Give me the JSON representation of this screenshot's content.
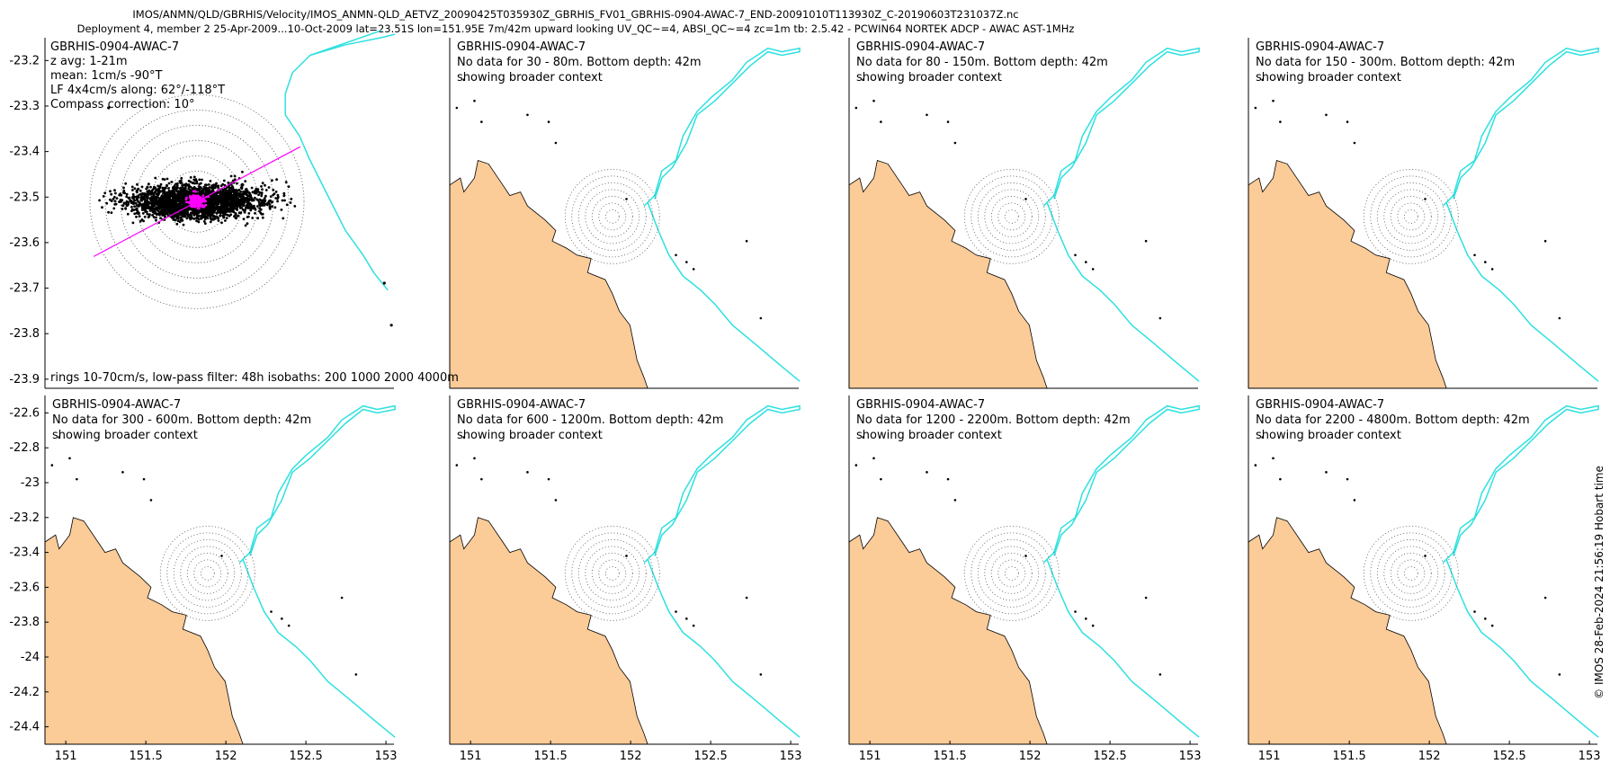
{
  "header": {
    "line1": "IMOS/ANMN/QLD/GBRHIS/Velocity/IMOS_ANMN-QLD_AETVZ_20090425T035930Z_GBRHIS_FV01_GBRHIS-0904-AWAC-7_END-20091010T113930Z_C-20190603T231037Z.nc",
    "line2": "Deployment 4, member 2 25-Apr-2009...10-Oct-2009 lat=23.51S lon=151.95E 7m/42m upward looking UV_QC~=4, ABSI_QC~=4 zc=1m tb: 2.5.42 - PCWIN64 NORTEK ADCP - AWAC AST-1MHz"
  },
  "side_label": "© IMOS 28-Feb-2024 21:56:19 Hobart time",
  "colors": {
    "land": "#fbcb98",
    "isobath": "#2ee0e0",
    "scatter": "#000000",
    "lowpass": "#ff00ff",
    "rings": "#555555"
  },
  "chart_data": {
    "type": "scatter",
    "station": "GBRHIS-0904-AWAC-7",
    "station_lat": -23.51,
    "station_lon": 151.95,
    "top_panel": {
      "info_lines": [
        "GBRHIS-0904-AWAC-7",
        "z avg: 1-21m",
        "mean: 1cm/s -90°T",
        "LF 4x4cm/s along: 62°/-118°T",
        "Compass correction: 10°"
      ],
      "footer": "rings 10-70cm/s, low-pass filter: 48h isobaths: 200 1000 2000 4000m",
      "ylim": [
        -23.92,
        -23.15
      ],
      "y_ticks": [
        -23.2,
        -23.3,
        -23.4,
        -23.5,
        -23.6,
        -23.7,
        -23.8,
        -23.9
      ],
      "y_tick_labels": [
        "-23.2",
        "-23.3",
        "-23.4",
        "-23.5",
        "-23.6",
        "-23.7",
        "-23.8",
        "-23.9"
      ],
      "ring_speeds_cm_s": [
        10,
        20,
        30,
        40,
        50,
        60,
        70
      ],
      "mean_velocity": {
        "speed_cm_s": 1,
        "direction_degT": -90
      },
      "principal_axis_degT": 62
    },
    "no_data_panels": [
      {
        "title": "GBRHIS-0904-AWAC-7",
        "message": "No data for 30 - 80m. Bottom depth: 42m",
        "note": "showing broader context"
      },
      {
        "title": "GBRHIS-0904-AWAC-7",
        "message": "No data for 80 - 150m. Bottom depth: 42m",
        "note": "showing broader context"
      },
      {
        "title": "GBRHIS-0904-AWAC-7",
        "message": "No data for 150 - 300m. Bottom depth: 42m",
        "note": "showing broader context"
      },
      {
        "title": "GBRHIS-0904-AWAC-7",
        "message": "No data for 300 - 600m. Bottom depth: 42m",
        "note": "showing broader context"
      },
      {
        "title": "GBRHIS-0904-AWAC-7",
        "message": "No data for 600 - 1200m. Bottom depth: 42m",
        "note": "showing broader context"
      },
      {
        "title": "GBRHIS-0904-AWAC-7",
        "message": "No data for 1200 - 2200m. Bottom depth: 42m",
        "note": "showing broader context"
      },
      {
        "title": "GBRHIS-0904-AWAC-7",
        "message": "No data for 2200 - 4800m. Bottom depth: 42m",
        "note": "showing broader context"
      }
    ],
    "context_xlim": [
      150.87,
      153.05
    ],
    "context_ylim": [
      -24.5,
      -22.5
    ],
    "bottom_y_ticks": [
      -22.6,
      -22.8,
      -23,
      -23.2,
      -23.4,
      -23.6,
      -23.8,
      -24,
      -24.2,
      -24.4
    ],
    "bottom_y_tick_labels": [
      "-22.6",
      "-22.8",
      "-23",
      "-23.2",
      "-23.4",
      "-23.6",
      "-23.8",
      "-24",
      "-24.2",
      "-24.4"
    ],
    "x_ticks": [
      151,
      151.5,
      152,
      152.5,
      153
    ],
    "x_tick_labels": [
      "151",
      "151.5",
      "152",
      "152.5",
      "153"
    ]
  }
}
